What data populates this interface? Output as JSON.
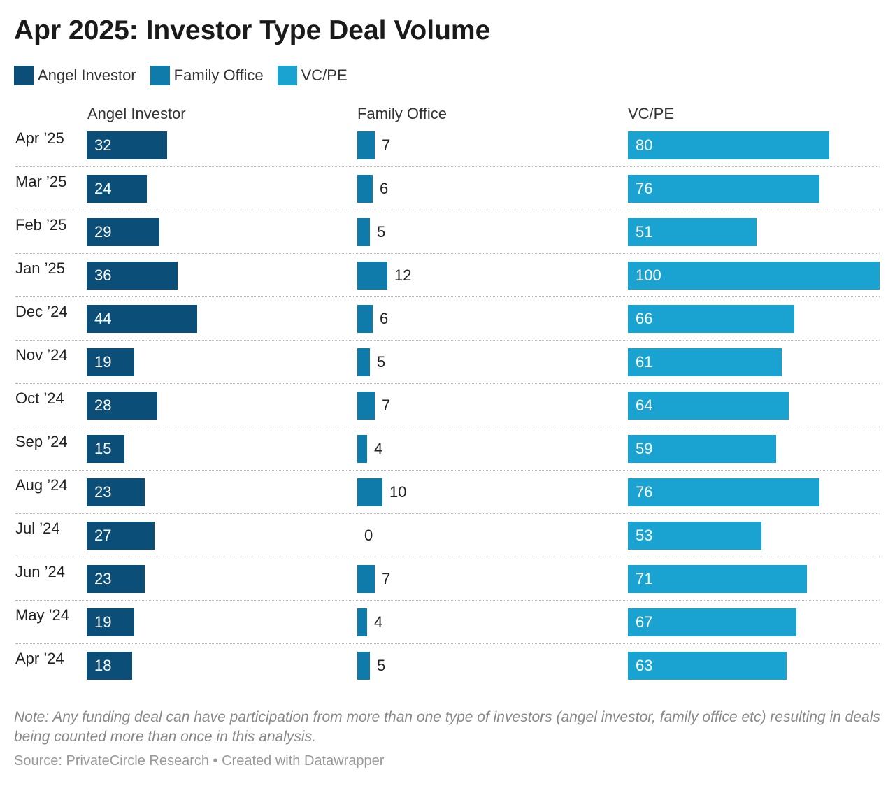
{
  "chart_data": {
    "type": "bar",
    "title": "Apr 2025: Investor Type Deal Volume",
    "categories": [
      "Apr ’25",
      "Mar ’25",
      "Feb ’25",
      "Jan ’25",
      "Dec ’24",
      "Nov ’24",
      "Oct ’24",
      "Sep ’24",
      "Aug ’24",
      "Jul ’24",
      "Jun ’24",
      "May ’24",
      "Apr ’24"
    ],
    "series": [
      {
        "name": "Angel Investor",
        "color": "#0b4f79",
        "values": [
          32,
          24,
          29,
          36,
          44,
          19,
          28,
          15,
          23,
          27,
          23,
          19,
          18
        ]
      },
      {
        "name": "Family Office",
        "color": "#0f7baa",
        "values": [
          7,
          6,
          5,
          12,
          6,
          5,
          7,
          4,
          10,
          0,
          7,
          4,
          5
        ]
      },
      {
        "name": "VC/PE",
        "color": "#1aa3d1",
        "values": [
          80,
          76,
          51,
          100,
          66,
          61,
          64,
          59,
          76,
          53,
          71,
          67,
          63
        ]
      }
    ],
    "xlabel": "",
    "ylabel": "",
    "legend": "top-left",
    "grid": false
  },
  "note": "Note: Any funding deal can have participation from more than one type of investors (angel investor, family office etc) resulting in deals being counted more than once in this analysis.",
  "source": "Source: PrivateCircle Research • Created with Datawrapper"
}
